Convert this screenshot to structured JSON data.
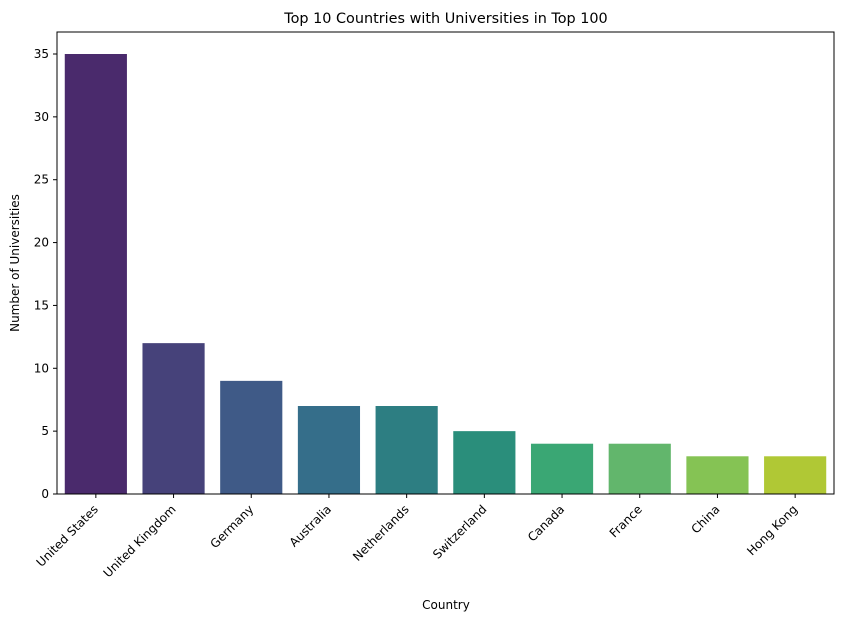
{
  "chart_data": {
    "type": "bar",
    "title": "Top 10 Countries with Universities in Top 100",
    "xlabel": "Country",
    "ylabel": "Number of Universities",
    "categories": [
      "United States",
      "United Kingdom",
      "Germany",
      "Australia",
      "Netherlands",
      "Switzerland",
      "Canada",
      "France",
      "China",
      "Hong Kong"
    ],
    "values": [
      35,
      12,
      9,
      7,
      7,
      5,
      4,
      4,
      3,
      3
    ],
    "colors": [
      "#4a2a6c",
      "#46427a",
      "#3f5a87",
      "#356e8a",
      "#2d7e82",
      "#2a8e7b",
      "#3aa774",
      "#62b66c",
      "#85c354",
      "#b0c835"
    ],
    "ylim": [
      0,
      36.75
    ],
    "yticks": [
      0,
      5,
      10,
      15,
      20,
      25,
      30,
      35
    ],
    "grid": false,
    "legend": "none",
    "x_tick_rotation": 45
  }
}
